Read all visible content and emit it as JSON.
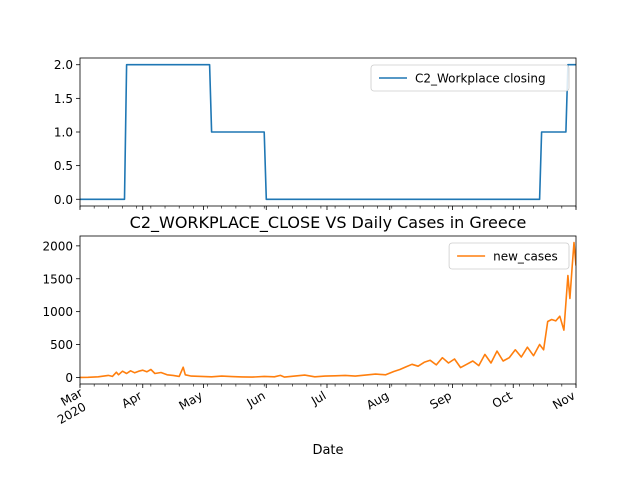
{
  "chart_data": [
    {
      "type": "line",
      "title": "",
      "xlabel": "",
      "ylabel": "",
      "ylim": [
        -0.1,
        2.1
      ],
      "yticks": [
        0.0,
        0.5,
        1.0,
        1.5,
        2.0
      ],
      "ytick_labels": [
        "0.0",
        "0.5",
        "1.0",
        "1.5",
        "2.0"
      ],
      "xlim": [
        "2020-03-01",
        "2020-11-01"
      ],
      "legend": "upper right",
      "series": [
        {
          "name": "C2_Workplace closing",
          "color": "#1f77b4",
          "step": true,
          "points": [
            [
              "2020-03-01",
              0
            ],
            [
              "2020-03-23",
              0
            ],
            [
              "2020-03-24",
              2
            ],
            [
              "2020-05-04",
              2
            ],
            [
              "2020-05-05",
              1
            ],
            [
              "2020-05-31",
              1
            ],
            [
              "2020-06-01",
              0
            ],
            [
              "2020-10-14",
              0
            ],
            [
              "2020-10-15",
              1
            ],
            [
              "2020-10-27",
              1
            ],
            [
              "2020-10-28",
              2
            ],
            [
              "2020-11-01",
              2
            ]
          ]
        }
      ]
    },
    {
      "type": "line",
      "title": "C2_WORKPLACE_CLOSE VS Daily Cases in Greece",
      "xlabel": "Date",
      "ylabel": "",
      "ylim": [
        -100,
        2150
      ],
      "yticks": [
        0,
        500,
        1000,
        1500,
        2000
      ],
      "ytick_labels": [
        "0",
        "500",
        "1000",
        "1500",
        "2000"
      ],
      "xlim": [
        "2020-03-01",
        "2020-11-01"
      ],
      "xticks": [
        "2020-03-01",
        "2020-04-01",
        "2020-05-01",
        "2020-06-01",
        "2020-07-01",
        "2020-08-01",
        "2020-09-01",
        "2020-10-01",
        "2020-11-01"
      ],
      "xtick_labels": [
        "Mar\n2020",
        "Apr",
        "May",
        "Jun",
        "Jul",
        "Aug",
        "Sep",
        "Oct",
        "Nov"
      ],
      "legend": "upper right",
      "series": [
        {
          "name": "new_cases",
          "color": "#ff7f0e",
          "points": [
            [
              "2020-03-01",
              0
            ],
            [
              "2020-03-05",
              2
            ],
            [
              "2020-03-10",
              10
            ],
            [
              "2020-03-15",
              30
            ],
            [
              "2020-03-17",
              15
            ],
            [
              "2020-03-19",
              80
            ],
            [
              "2020-03-20",
              40
            ],
            [
              "2020-03-22",
              95
            ],
            [
              "2020-03-24",
              60
            ],
            [
              "2020-03-26",
              100
            ],
            [
              "2020-03-28",
              70
            ],
            [
              "2020-03-30",
              95
            ],
            [
              "2020-04-01",
              110
            ],
            [
              "2020-04-03",
              85
            ],
            [
              "2020-04-05",
              120
            ],
            [
              "2020-04-07",
              60
            ],
            [
              "2020-04-10",
              75
            ],
            [
              "2020-04-13",
              40
            ],
            [
              "2020-04-16",
              30
            ],
            [
              "2020-04-19",
              15
            ],
            [
              "2020-04-21",
              156
            ],
            [
              "2020-04-22",
              40
            ],
            [
              "2020-04-25",
              20
            ],
            [
              "2020-04-30",
              15
            ],
            [
              "2020-05-05",
              10
            ],
            [
              "2020-05-10",
              20
            ],
            [
              "2020-05-15",
              12
            ],
            [
              "2020-05-20",
              8
            ],
            [
              "2020-05-25",
              5
            ],
            [
              "2020-05-31",
              15
            ],
            [
              "2020-06-05",
              10
            ],
            [
              "2020-06-08",
              30
            ],
            [
              "2020-06-10",
              5
            ],
            [
              "2020-06-15",
              20
            ],
            [
              "2020-06-20",
              35
            ],
            [
              "2020-06-25",
              10
            ],
            [
              "2020-06-30",
              20
            ],
            [
              "2020-07-05",
              25
            ],
            [
              "2020-07-10",
              30
            ],
            [
              "2020-07-15",
              20
            ],
            [
              "2020-07-20",
              35
            ],
            [
              "2020-07-25",
              50
            ],
            [
              "2020-07-30",
              40
            ],
            [
              "2020-08-03",
              90
            ],
            [
              "2020-08-06",
              120
            ],
            [
              "2020-08-09",
              160
            ],
            [
              "2020-08-12",
              200
            ],
            [
              "2020-08-15",
              170
            ],
            [
              "2020-08-18",
              230
            ],
            [
              "2020-08-21",
              260
            ],
            [
              "2020-08-24",
              190
            ],
            [
              "2020-08-27",
              300
            ],
            [
              "2020-08-30",
              220
            ],
            [
              "2020-09-02",
              280
            ],
            [
              "2020-09-05",
              150
            ],
            [
              "2020-09-08",
              200
            ],
            [
              "2020-09-11",
              250
            ],
            [
              "2020-09-14",
              180
            ],
            [
              "2020-09-17",
              350
            ],
            [
              "2020-09-20",
              220
            ],
            [
              "2020-09-23",
              400
            ],
            [
              "2020-09-26",
              250
            ],
            [
              "2020-09-29",
              300
            ],
            [
              "2020-10-02",
              420
            ],
            [
              "2020-10-05",
              310
            ],
            [
              "2020-10-08",
              460
            ],
            [
              "2020-10-11",
              330
            ],
            [
              "2020-10-14",
              500
            ],
            [
              "2020-10-16",
              420
            ],
            [
              "2020-10-18",
              850
            ],
            [
              "2020-10-20",
              880
            ],
            [
              "2020-10-22",
              860
            ],
            [
              "2020-10-24",
              930
            ],
            [
              "2020-10-26",
              720
            ],
            [
              "2020-10-28",
              1550
            ],
            [
              "2020-10-29",
              1200
            ],
            [
              "2020-10-30",
              1650
            ],
            [
              "2020-10-31",
              2050
            ],
            [
              "2020-11-01",
              1700
            ]
          ]
        }
      ]
    }
  ]
}
